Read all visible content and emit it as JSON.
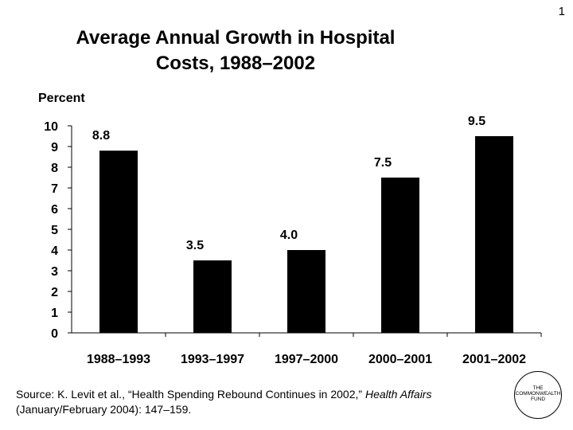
{
  "page_number": "1",
  "title_line1": "Average Annual Growth in Hospital",
  "title_line2": "Costs, 1988–2002",
  "source": {
    "prefix": "Source: K. Levit et al., “Health Spending Rebound Continues in 2002,” ",
    "journal": "Health Affairs",
    "suffix": " (January/February 2004): 147–159."
  },
  "logo": {
    "line1": "THE",
    "line2": "COMMONWEALTH",
    "line3": "FUND"
  },
  "chart_data": {
    "type": "bar",
    "title": "Average Annual Growth in Hospital Costs, 1988–2002",
    "ylabel": "Percent",
    "xlabel": "",
    "categories": [
      "1988–1993",
      "1993–1997",
      "1997–2000",
      "2000–2001",
      "2001–2002"
    ],
    "values": [
      8.8,
      3.5,
      4.0,
      7.5,
      9.5
    ],
    "value_labels": [
      "8.8",
      "3.5",
      "4.0",
      "7.5",
      "9.5"
    ],
    "ylim": [
      0,
      10
    ],
    "yticks": [
      0,
      1,
      2,
      3,
      4,
      5,
      6,
      7,
      8,
      9,
      10
    ],
    "bar_color": "#000000",
    "grid": false,
    "legend": false
  }
}
